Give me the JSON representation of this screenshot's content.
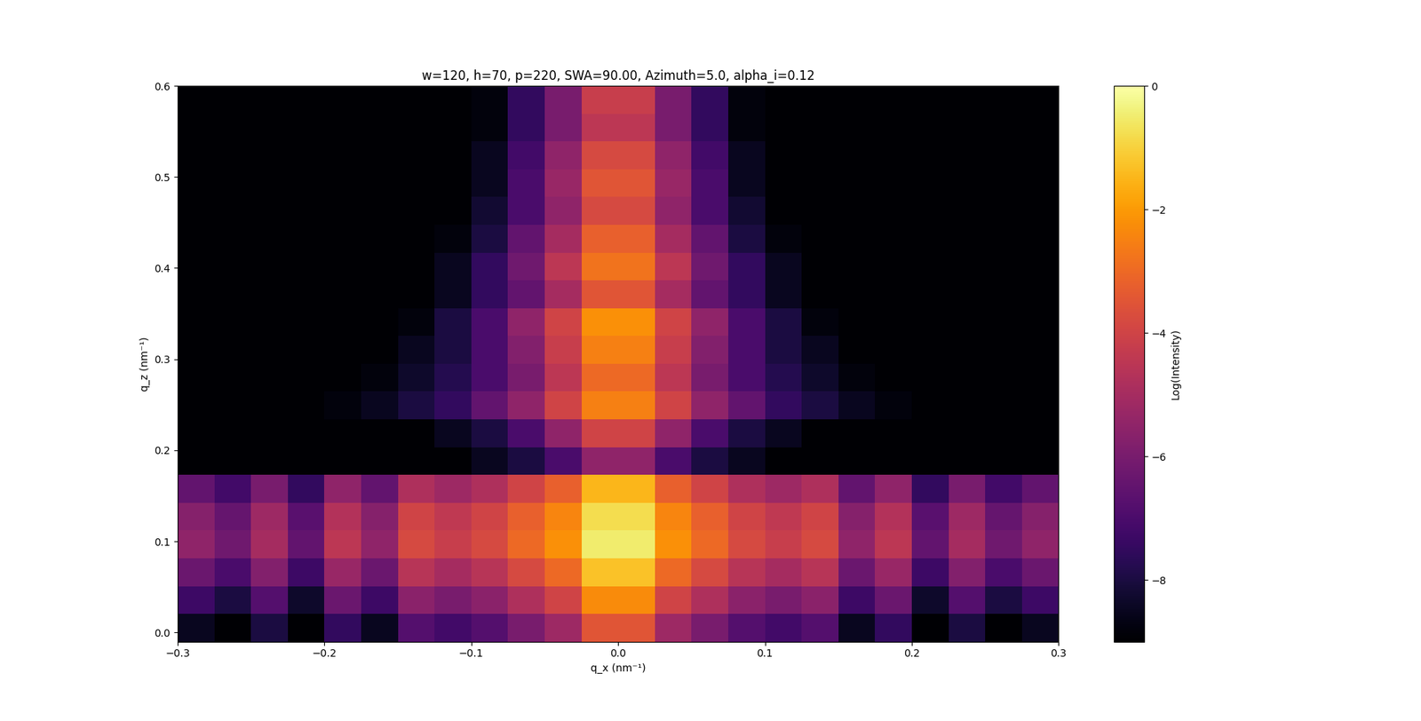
{
  "chart_data": {
    "type": "heatmap",
    "title": "w=120, h=70, p=220, SWA=90.00, Azimuth=5.0, alpha_i=0.12",
    "x_label": "q_x (nm⁻¹)",
    "y_label": "q_z (nm⁻¹)",
    "xlim": [
      -0.3,
      0.3
    ],
    "ylim": [
      -0.01,
      0.6
    ],
    "xticks": [
      {
        "value": -0.3,
        "label": "−0.3"
      },
      {
        "value": -0.2,
        "label": "−0.2"
      },
      {
        "value": -0.1,
        "label": "−0.1"
      },
      0.0,
      0.1,
      0.2,
      0.3
    ],
    "yticks": [
      0.0,
      0.1,
      0.2,
      0.3,
      0.4,
      0.5,
      0.6
    ],
    "color": "inferno",
    "colorbar": {
      "label": "Log(Intensity)",
      "lim": [
        -9,
        0
      ],
      "ticks": [
        0,
        {
          "value": -2,
          "label": "−2"
        },
        {
          "value": -4,
          "label": "−4"
        },
        {
          "value": -6,
          "label": "−6"
        },
        {
          "value": -8,
          "label": "−8"
        }
      ]
    },
    "x_edges": [
      -0.3,
      -0.275,
      -0.25,
      -0.225,
      -0.2,
      -0.175,
      -0.15,
      -0.125,
      -0.1,
      -0.075,
      -0.05,
      -0.025,
      0.0,
      0.025,
      0.05,
      0.075,
      0.1,
      0.125,
      0.15,
      0.175,
      0.2,
      0.225,
      0.25,
      0.275,
      0.3
    ],
    "y_edges": [
      -0.01,
      0.0205,
      0.051,
      0.0815,
      0.112,
      0.1425,
      0.173,
      0.2035,
      0.234,
      0.2645,
      0.295,
      0.3255,
      0.356,
      0.3865,
      0.417,
      0.4475,
      0.478,
      0.5085,
      0.539,
      0.5695,
      0.6
    ],
    "cells": [
      [
        -8.5,
        -9.0,
        -8.0,
        -9.0,
        -7.5,
        -8.5,
        -6.8,
        -7.2,
        -6.8,
        -6.0,
        -5.2,
        -3.5,
        -3.5,
        -5.2,
        -6.0,
        -6.8,
        -7.2,
        -6.8,
        -8.5,
        -7.5,
        -9.0,
        -8.0,
        -9.0,
        -8.5
      ],
      [
        -7.3,
        -8.0,
        -6.8,
        -8.3,
        -6.3,
        -7.3,
        -5.6,
        -6.0,
        -5.6,
        -4.8,
        -4.0,
        -2.3,
        -2.3,
        -4.0,
        -4.8,
        -5.6,
        -6.0,
        -5.6,
        -7.3,
        -6.3,
        -8.3,
        -6.8,
        -8.0,
        -7.3
      ],
      [
        -6.3,
        -7.0,
        -5.8,
        -7.3,
        -5.3,
        -6.3,
        -4.6,
        -5.0,
        -4.6,
        -3.8,
        -3.0,
        -1.3,
        -1.3,
        -3.0,
        -3.8,
        -4.6,
        -5.0,
        -4.6,
        -6.3,
        -5.3,
        -7.3,
        -5.8,
        -7.0,
        -6.3
      ],
      [
        -5.5,
        -6.2,
        -5.0,
        -6.5,
        -4.5,
        -5.5,
        -3.8,
        -4.2,
        -3.8,
        -3.0,
        -2.2,
        -0.5,
        -0.5,
        -2.2,
        -3.0,
        -3.8,
        -4.2,
        -3.8,
        -5.5,
        -4.5,
        -6.5,
        -5.0,
        -6.2,
        -5.5
      ],
      [
        -5.7,
        -6.4,
        -5.2,
        -6.7,
        -4.7,
        -5.7,
        -4.0,
        -4.4,
        -4.0,
        -3.2,
        -2.4,
        -0.8,
        -0.8,
        -2.4,
        -3.2,
        -4.0,
        -4.4,
        -4.0,
        -5.7,
        -4.7,
        -6.7,
        -5.2,
        -6.4,
        -5.7
      ],
      [
        -6.5,
        -7.2,
        -6.0,
        -7.5,
        -5.5,
        -6.5,
        -4.8,
        -5.2,
        -4.8,
        -4.0,
        -3.2,
        -1.5,
        -1.5,
        -3.2,
        -4.0,
        -4.8,
        -5.2,
        -4.8,
        -6.5,
        -5.5,
        -7.5,
        -6.0,
        -7.2,
        -6.5
      ],
      [
        -9.0,
        -9.0,
        -9.0,
        -9.0,
        -9.0,
        -9.0,
        -9.0,
        -9.0,
        -8.5,
        -8.0,
        -7.0,
        -5.5,
        -5.5,
        -7.0,
        -8.0,
        -8.5,
        -9.0,
        -9.0,
        -9.0,
        -9.0,
        -9.0,
        -9.0,
        -9.0,
        -9.0
      ],
      [
        -9.0,
        -9.0,
        -9.0,
        -9.0,
        -9.0,
        -9.0,
        -9.0,
        -8.5,
        -8.0,
        -7.0,
        -5.5,
        -4.0,
        -4.0,
        -5.5,
        -7.0,
        -8.0,
        -8.5,
        -9.0,
        -9.0,
        -9.0,
        -9.0,
        -9.0,
        -9.0,
        -9.0
      ],
      [
        -9.0,
        -9.0,
        -9.0,
        -9.0,
        -8.8,
        -8.5,
        -8.0,
        -7.5,
        -6.5,
        -5.5,
        -4.0,
        -2.5,
        -2.5,
        -4.0,
        -5.5,
        -6.5,
        -7.5,
        -8.0,
        -8.5,
        -8.8,
        -9.0,
        -9.0,
        -9.0,
        -9.0
      ],
      [
        -9.0,
        -9.0,
        -9.0,
        -9.0,
        -9.0,
        -8.8,
        -8.3,
        -7.8,
        -7.0,
        -6.0,
        -4.5,
        -3.0,
        -3.0,
        -4.5,
        -6.0,
        -7.0,
        -7.8,
        -8.3,
        -8.8,
        -9.0,
        -9.0,
        -9.0,
        -9.0,
        -9.0
      ],
      [
        -9.0,
        -9.0,
        -9.0,
        -9.0,
        -9.0,
        -9.0,
        -8.5,
        -8.0,
        -7.0,
        -5.8,
        -4.2,
        -2.5,
        -2.5,
        -4.2,
        -5.8,
        -7.0,
        -8.0,
        -8.5,
        -9.0,
        -9.0,
        -9.0,
        -9.0,
        -9.0,
        -9.0
      ],
      [
        -9.0,
        -9.0,
        -9.0,
        -9.0,
        -9.0,
        -9.0,
        -8.8,
        -8.0,
        -7.0,
        -5.5,
        -4.0,
        -2.2,
        -2.2,
        -4.0,
        -5.5,
        -7.0,
        -8.0,
        -8.8,
        -9.0,
        -9.0,
        -9.0,
        -9.0,
        -9.0,
        -9.0
      ],
      [
        -9.0,
        -9.0,
        -9.0,
        -9.0,
        -9.0,
        -9.0,
        -9.0,
        -8.5,
        -7.5,
        -6.5,
        -5.0,
        -3.5,
        -3.5,
        -5.0,
        -6.5,
        -7.5,
        -8.5,
        -9.0,
        -9.0,
        -9.0,
        -9.0,
        -9.0,
        -9.0,
        -9.0
      ],
      [
        -9.0,
        -9.0,
        -9.0,
        -9.0,
        -9.0,
        -9.0,
        -9.0,
        -8.5,
        -7.5,
        -6.2,
        -4.5,
        -2.8,
        -2.8,
        -4.5,
        -6.2,
        -7.5,
        -8.5,
        -9.0,
        -9.0,
        -9.0,
        -9.0,
        -9.0,
        -9.0,
        -9.0
      ],
      [
        -9.0,
        -9.0,
        -9.0,
        -9.0,
        -9.0,
        -9.0,
        -9.0,
        -8.8,
        -8.0,
        -6.5,
        -5.0,
        -3.2,
        -3.2,
        -5.0,
        -6.5,
        -8.0,
        -8.8,
        -9.0,
        -9.0,
        -9.0,
        -9.0,
        -9.0,
        -9.0,
        -9.0
      ],
      [
        -9.0,
        -9.0,
        -9.0,
        -9.0,
        -9.0,
        -9.0,
        -9.0,
        -9.0,
        -8.2,
        -7.0,
        -5.5,
        -3.8,
        -3.8,
        -5.5,
        -7.0,
        -8.2,
        -9.0,
        -9.0,
        -9.0,
        -9.0,
        -9.0,
        -9.0,
        -9.0,
        -9.0
      ],
      [
        -9.0,
        -9.0,
        -9.0,
        -9.0,
        -9.0,
        -9.0,
        -9.0,
        -9.0,
        -8.5,
        -7.0,
        -5.3,
        -3.5,
        -3.5,
        -5.3,
        -7.0,
        -8.5,
        -9.0,
        -9.0,
        -9.0,
        -9.0,
        -9.0,
        -9.0,
        -9.0,
        -9.0
      ],
      [
        -9.0,
        -9.0,
        -9.0,
        -9.0,
        -9.0,
        -9.0,
        -9.0,
        -9.0,
        -8.5,
        -7.2,
        -5.5,
        -3.8,
        -3.8,
        -5.5,
        -7.2,
        -8.5,
        -9.0,
        -9.0,
        -9.0,
        -9.0,
        -9.0,
        -9.0,
        -9.0,
        -9.0
      ],
      [
        -9.0,
        -9.0,
        -9.0,
        -9.0,
        -9.0,
        -9.0,
        -9.0,
        -9.0,
        -8.8,
        -7.5,
        -6.0,
        -4.5,
        -4.5,
        -6.0,
        -7.5,
        -8.8,
        -9.0,
        -9.0,
        -9.0,
        -9.0,
        -9.0,
        -9.0,
        -9.0,
        -9.0
      ],
      [
        -9.0,
        -9.0,
        -9.0,
        -9.0,
        -9.0,
        -9.0,
        -9.0,
        -9.0,
        -8.8,
        -7.5,
        -6.0,
        -4.2,
        -4.2,
        -6.0,
        -7.5,
        -8.8,
        -9.0,
        -9.0,
        -9.0,
        -9.0,
        -9.0,
        -9.0,
        -9.0,
        -9.0
      ]
    ]
  }
}
